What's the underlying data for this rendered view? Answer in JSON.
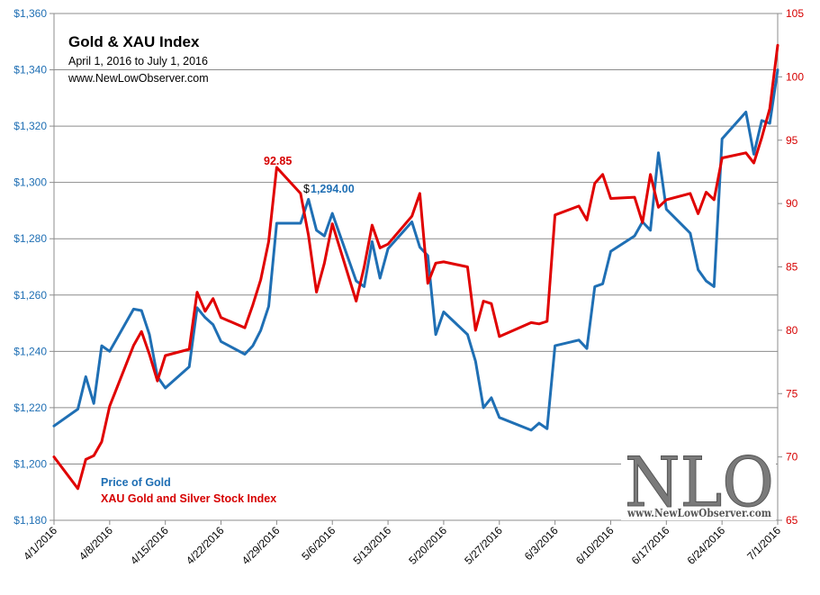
{
  "chart_data": {
    "type": "line",
    "title": "Gold  & XAU Index",
    "subtitle": "April 1, 2016  to July 1, 2016",
    "source_text": "www.NewLowObserver.com",
    "x_tick_labels": [
      "4/1/2016",
      "4/8/2016",
      "4/15/2016",
      "4/22/2016",
      "4/29/2016",
      "5/6/2016",
      "5/13/2016",
      "5/20/2016",
      "5/27/2016",
      "6/3/2016",
      "6/10/2016",
      "6/17/2016",
      "6/24/2016",
      "7/1/2016"
    ],
    "xlim": [
      "2016-04-01",
      "2016-07-01"
    ],
    "left_axis": {
      "ylim": [
        1180,
        1360
      ],
      "tick_values": [
        1180,
        1200,
        1220,
        1240,
        1260,
        1280,
        1300,
        1320,
        1340,
        1360
      ],
      "tick_labels": [
        "$1,180",
        "$1,200",
        "$1,220",
        "$1,240",
        "$1,260",
        "$1,280",
        "$1,300",
        "$1,320",
        "$1,340",
        "$1,360"
      ],
      "color": "#1f6fb4"
    },
    "right_axis": {
      "ylim": [
        65,
        105
      ],
      "tick_values": [
        65,
        70,
        75,
        80,
        85,
        90,
        95,
        100,
        105
      ],
      "tick_labels": [
        "65",
        "70",
        "75",
        "80",
        "85",
        "90",
        "95",
        "100",
        "105"
      ],
      "color": "#d60000"
    },
    "grid": "horizontal",
    "series": [
      {
        "name": "Price of Gold",
        "axis": "left",
        "color": "#1f6fb4",
        "x": [
          "2016-04-01",
          "2016-04-04",
          "2016-04-05",
          "2016-04-06",
          "2016-04-07",
          "2016-04-08",
          "2016-04-11",
          "2016-04-12",
          "2016-04-13",
          "2016-04-14",
          "2016-04-15",
          "2016-04-18",
          "2016-04-19",
          "2016-04-20",
          "2016-04-21",
          "2016-04-22",
          "2016-04-25",
          "2016-04-26",
          "2016-04-27",
          "2016-04-28",
          "2016-04-29",
          "2016-05-02",
          "2016-05-03",
          "2016-05-04",
          "2016-05-05",
          "2016-05-06",
          "2016-05-09",
          "2016-05-10",
          "2016-05-11",
          "2016-05-12",
          "2016-05-13",
          "2016-05-16",
          "2016-05-17",
          "2016-05-18",
          "2016-05-19",
          "2016-05-20",
          "2016-05-23",
          "2016-05-24",
          "2016-05-25",
          "2016-05-26",
          "2016-05-27",
          "2016-05-31",
          "2016-06-01",
          "2016-06-02",
          "2016-06-03",
          "2016-06-06",
          "2016-06-07",
          "2016-06-08",
          "2016-06-09",
          "2016-06-10",
          "2016-06-13",
          "2016-06-14",
          "2016-06-15",
          "2016-06-16",
          "2016-06-17",
          "2016-06-20",
          "2016-06-21",
          "2016-06-22",
          "2016-06-23",
          "2016-06-24",
          "2016-06-27",
          "2016-06-28",
          "2016-06-29",
          "2016-06-30",
          "2016-07-01"
        ],
        "values": [
          1213.5,
          1219.5,
          1231,
          1221.5,
          1242,
          1240,
          1255,
          1254.5,
          1246,
          1231,
          1227,
          1234.5,
          1255.5,
          1252,
          1249.5,
          1243.5,
          1239,
          1242,
          1247.5,
          1256,
          1285.5,
          1285.5,
          1294,
          1283,
          1281,
          1289,
          1265,
          1263,
          1279,
          1266,
          1276.5,
          1286,
          1277,
          1274,
          1246,
          1254,
          1246,
          1236.5,
          1220,
          1223.5,
          1216.5,
          1212,
          1214.5,
          1212.5,
          1242,
          1244,
          1241,
          1263,
          1264,
          1275.5,
          1281,
          1286,
          1283,
          1310.5,
          1290.5,
          1282,
          1269,
          1265,
          1263,
          1315.5,
          1325,
          1310,
          1322,
          1321,
          1340
        ]
      },
      {
        "name": "XAU Gold and Silver Stock Index",
        "axis": "right",
        "color": "#e00000",
        "x": [
          "2016-04-01",
          "2016-04-04",
          "2016-04-05",
          "2016-04-06",
          "2016-04-07",
          "2016-04-08",
          "2016-04-11",
          "2016-04-12",
          "2016-04-13",
          "2016-04-14",
          "2016-04-15",
          "2016-04-18",
          "2016-04-19",
          "2016-04-20",
          "2016-04-21",
          "2016-04-22",
          "2016-04-25",
          "2016-04-26",
          "2016-04-27",
          "2016-04-28",
          "2016-04-29",
          "2016-05-02",
          "2016-05-03",
          "2016-05-04",
          "2016-05-05",
          "2016-05-06",
          "2016-05-09",
          "2016-05-10",
          "2016-05-11",
          "2016-05-12",
          "2016-05-13",
          "2016-05-16",
          "2016-05-17",
          "2016-05-18",
          "2016-05-19",
          "2016-05-20",
          "2016-05-23",
          "2016-05-24",
          "2016-05-25",
          "2016-05-26",
          "2016-05-27",
          "2016-05-31",
          "2016-06-01",
          "2016-06-02",
          "2016-06-03",
          "2016-06-06",
          "2016-06-07",
          "2016-06-08",
          "2016-06-09",
          "2016-06-10",
          "2016-06-13",
          "2016-06-14",
          "2016-06-15",
          "2016-06-16",
          "2016-06-17",
          "2016-06-20",
          "2016-06-21",
          "2016-06-22",
          "2016-06-23",
          "2016-06-24",
          "2016-06-27",
          "2016-06-28",
          "2016-06-29",
          "2016-06-30",
          "2016-07-01"
        ],
        "values": [
          70,
          67.5,
          69.8,
          70.1,
          71.2,
          74,
          78.8,
          79.9,
          78.1,
          76,
          78,
          78.5,
          83,
          81.5,
          82.5,
          81,
          80.2,
          82,
          84,
          87,
          92.85,
          90.8,
          87.5,
          83,
          85.3,
          88.4,
          82.3,
          85,
          88.3,
          86.5,
          86.8,
          89,
          90.8,
          83.7,
          85.3,
          85.4,
          85,
          80,
          82.3,
          82.1,
          79.5,
          80.6,
          80.5,
          80.7,
          89.1,
          89.8,
          88.7,
          91.6,
          92.3,
          90.4,
          90.5,
          88.5,
          92.3,
          89.7,
          90.3,
          90.8,
          89.2,
          90.9,
          90.3,
          93.6,
          94,
          93.2,
          95.2,
          97.5,
          102.5
        ]
      }
    ],
    "annotations": [
      {
        "text": "92.85",
        "series": "XAU Gold and Silver Stock Index"
      },
      {
        "text": "$",
        "series": "Price of Gold"
      },
      {
        "text": "1,294.00",
        "series": "Price of Gold"
      }
    ],
    "legend": {
      "placement": "bottom-left",
      "items": [
        "Price of Gold",
        "XAU Gold and Silver Stock Index"
      ]
    }
  },
  "logo": {
    "text": "NLO",
    "url": "www.NewLowObserver.com"
  }
}
